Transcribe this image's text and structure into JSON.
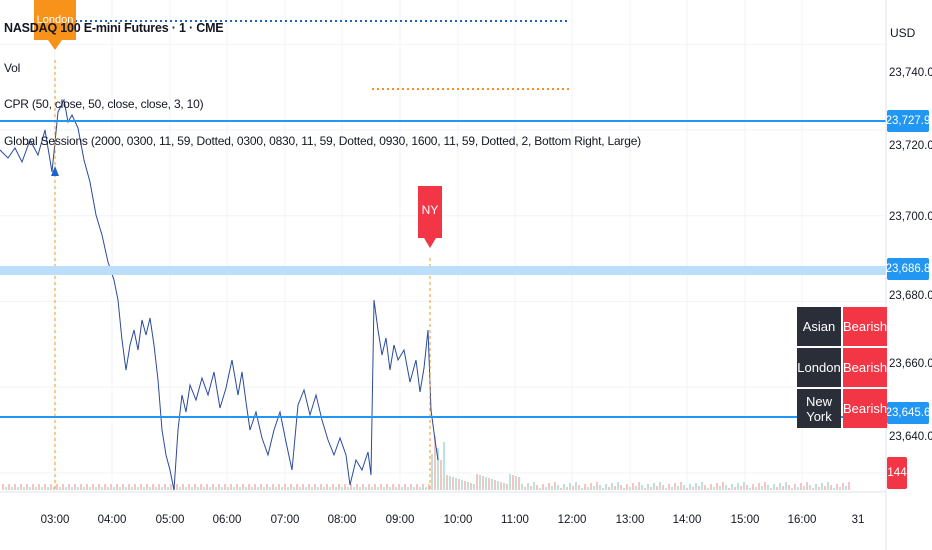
{
  "legend": {
    "title": "NASDAQ 100 E-mini Futures · 1 · CME",
    "volume": "Vol",
    "cpr": "CPR (50, close, 50, close, close, 3, 10)",
    "sessions": "Global Sessions (2000, 0300, 11, 59, Dotted, 0300, 0830, 11, 59, Dotted, 0930, 1600, 11, 59, Dotted, 2, Bottom Right, Large)"
  },
  "price_axis": {
    "currency": "USD",
    "ticks": [
      "23,740.00",
      "23,720.00",
      "23,700.00",
      "23,680.00",
      "23,660.00",
      "23,640.00"
    ],
    "labels": [
      {
        "value": "23,727.9",
        "color": "#2196f3"
      },
      {
        "value": "23,686.8",
        "color": "#2196f3"
      },
      {
        "value": "23,645.6",
        "color": "#2196f3"
      },
      {
        "value": "144",
        "color": "#f23645"
      }
    ]
  },
  "time_axis": {
    "ticks": [
      "03:00",
      "04:00",
      "05:00",
      "06:00",
      "07:00",
      "08:00",
      "09:00",
      "10:00",
      "11:00",
      "12:00",
      "13:00",
      "14:00",
      "15:00",
      "16:00",
      "31"
    ]
  },
  "markers": {
    "london": "London",
    "ny": "NY"
  },
  "session_table": [
    {
      "session": "Asian",
      "bias": "Bearish"
    },
    {
      "session": "London",
      "bias": "Bearish"
    },
    {
      "session": "New York",
      "bias": "Bearish"
    }
  ],
  "colors": {
    "level_line": "#2196f3",
    "level_band": "#bbdefb",
    "candle": "#2a4a9c",
    "bearish": "#f23645",
    "london_marker": "#f7931a",
    "ny_line": "#f7931a",
    "asian_line": "#1e62c8"
  },
  "chart_data": {
    "type": "line",
    "title": "NASDAQ 100 E-mini Futures · 1 · CME",
    "x": [
      "03:00",
      "04:00",
      "05:00",
      "06:00",
      "07:00",
      "08:00",
      "09:00",
      "10:00"
    ],
    "series": [
      {
        "values": [
          23718,
          23668,
          23638,
          23655,
          23648,
          23645,
          23668,
          23640
        ]
      }
    ],
    "ylim": [
      23636,
      23748
    ],
    "levels": [
      23727.9,
      23686.8,
      23645.6
    ],
    "volume_last": 144,
    "grid": true
  }
}
